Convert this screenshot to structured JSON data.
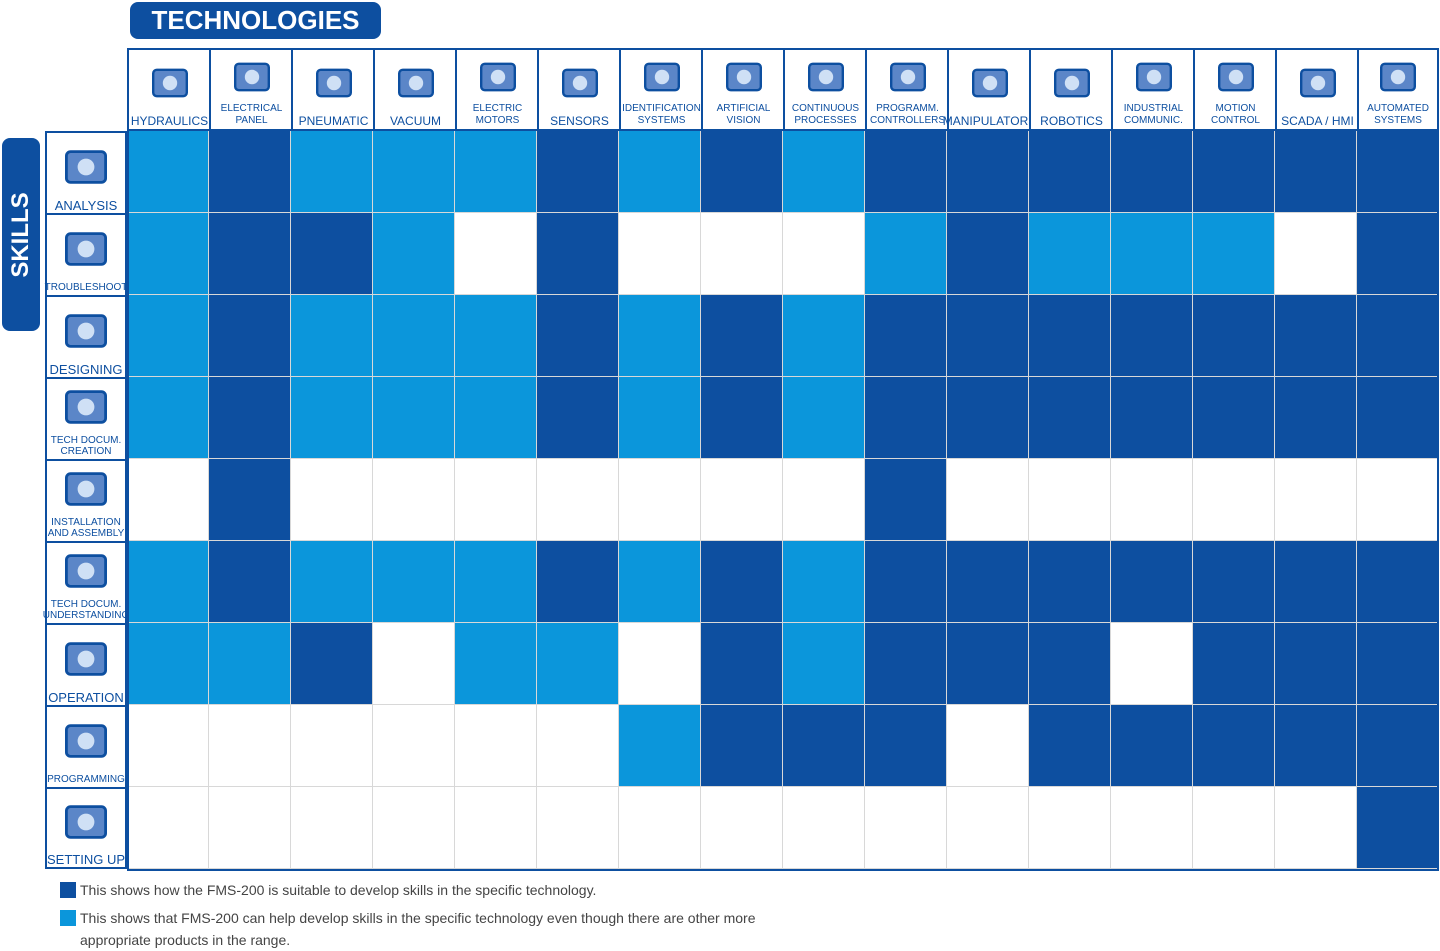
{
  "header": {
    "title": "TECHNOLOGIES",
    "side_title": "SKILLS"
  },
  "columns": [
    "HYDRAULICS",
    "ELECTRICAL\nPANEL",
    "PNEUMATIC",
    "VACUUM",
    "ELECTRIC\nMOTORS",
    "SENSORS",
    "IDENTIFICATION\nSYSTEMS",
    "ARTIFICIAL\nVISION",
    "CONTINUOUS\nPROCESSES",
    "PROGRAMM.\nCONTROLLERS",
    "MANIPULATORS",
    "ROBOTICS",
    "INDUSTRIAL\nCOMMUNIC.",
    "MOTION\nCONTROL",
    "SCADA / HMI",
    "AUTOMATED\nSYSTEMS"
  ],
  "rows": [
    {
      "label": "ANALYSIS",
      "cells": [
        "#0b96db",
        "#0d4fa0",
        "#0b96db",
        "#0b96db",
        "#0b96db",
        "#0d4fa0",
        "#0b96db",
        "#0d4fa0",
        "#0b96db",
        "#0d4fa0",
        "#0d4fa0",
        "#0d4fa0",
        "#0d4fa0",
        "#0d4fa0",
        "#0d4fa0",
        "#0d4fa0"
      ]
    },
    {
      "label": "TROUBLESHOOT",
      "cells": [
        "#0b96db",
        "#0d4fa0",
        "#0d4fa0",
        "#0b96db",
        "#ffffff",
        "#0d4fa0",
        "#ffffff",
        "#ffffff",
        "#ffffff",
        "#0b96db",
        "#0d4fa0",
        "#0b96db",
        "#0b96db",
        "#0b96db",
        "#ffffff",
        "#0d4fa0"
      ]
    },
    {
      "label": "DESIGNING",
      "cells": [
        "#0b96db",
        "#0d4fa0",
        "#0b96db",
        "#0b96db",
        "#0b96db",
        "#0d4fa0",
        "#0b96db",
        "#0d4fa0",
        "#0b96db",
        "#0d4fa0",
        "#0d4fa0",
        "#0d4fa0",
        "#0d4fa0",
        "#0d4fa0",
        "#0d4fa0",
        "#0d4fa0"
      ]
    },
    {
      "label": "TECH DOCUM.\nCREATION",
      "cells": [
        "#0b96db",
        "#0d4fa0",
        "#0b96db",
        "#0b96db",
        "#0b96db",
        "#0d4fa0",
        "#0b96db",
        "#0d4fa0",
        "#0b96db",
        "#0d4fa0",
        "#0d4fa0",
        "#0d4fa0",
        "#0d4fa0",
        "#0d4fa0",
        "#0d4fa0",
        "#0d4fa0"
      ]
    },
    {
      "label": "INSTALLATION\nAND ASSEMBLY",
      "cells": [
        "#ffffff",
        "#0d4fa0",
        "#ffffff",
        "#ffffff",
        "#ffffff",
        "#ffffff",
        "#ffffff",
        "#ffffff",
        "#ffffff",
        "#0d4fa0",
        "#ffffff",
        "#ffffff",
        "#ffffff",
        "#ffffff",
        "#ffffff",
        "#ffffff"
      ]
    },
    {
      "label": "TECH DOCUM.\nUNDERSTANDING",
      "cells": [
        "#0b96db",
        "#0d4fa0",
        "#0b96db",
        "#0b96db",
        "#0b96db",
        "#0d4fa0",
        "#0b96db",
        "#0d4fa0",
        "#0b96db",
        "#0d4fa0",
        "#0d4fa0",
        "#0d4fa0",
        "#0d4fa0",
        "#0d4fa0",
        "#0d4fa0",
        "#0d4fa0"
      ]
    },
    {
      "label": "OPERATION",
      "cells": [
        "#0b96db",
        "#0b96db",
        "#0d4fa0",
        "#ffffff",
        "#0b96db",
        "#0b96db",
        "#ffffff",
        "#0d4fa0",
        "#0b96db",
        "#0d4fa0",
        "#0d4fa0",
        "#0d4fa0",
        "#ffffff",
        "#0d4fa0",
        "#0d4fa0",
        "#0d4fa0"
      ]
    },
    {
      "label": "PROGRAMMING",
      "cells": [
        "#ffffff",
        "#ffffff",
        "#ffffff",
        "#ffffff",
        "#ffffff",
        "#ffffff",
        "#0b96db",
        "#0d4fa0",
        "#0d4fa0",
        "#0d4fa0",
        "#ffffff",
        "#0d4fa0",
        "#0d4fa0",
        "#0d4fa0",
        "#0d4fa0",
        "#0d4fa0"
      ]
    },
    {
      "label": "SETTING UP",
      "cells": [
        "#ffffff",
        "#ffffff",
        "#ffffff",
        "#ffffff",
        "#ffffff",
        "#ffffff",
        "#ffffff",
        "#ffffff",
        "#ffffff",
        "#ffffff",
        "#ffffff",
        "#ffffff",
        "#ffffff",
        "#ffffff",
        "#ffffff",
        "#0d4fa0"
      ]
    }
  ],
  "legend": [
    {
      "color": "#0d4fa0",
      "text": "This shows how the FMS-200 is suitable to develop skills in the specific technology."
    },
    {
      "color": "#0b96db",
      "text": "This shows that FMS-200 can help develop skills in the specific technology even though there are other more\nappropriate products in the range."
    }
  ]
}
